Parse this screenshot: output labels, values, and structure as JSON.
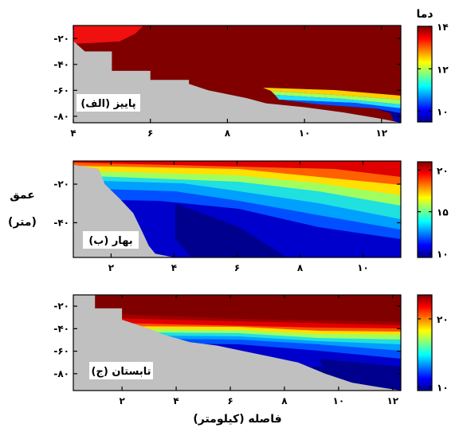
{
  "chart_data": [
    {
      "type": "heatmap",
      "panel_label": "(الف) پاییز",
      "xlim": [
        4,
        12.5
      ],
      "ylim": [
        -85,
        -10
      ],
      "xticks": [
        4,
        6,
        8,
        10,
        12
      ],
      "xtick_labels": [
        "۴",
        "۶",
        "۸",
        "۱۰",
        "۱۲"
      ],
      "yticks": [
        -20,
        -40,
        -60,
        -80
      ],
      "ytick_labels": [
        "-۲۰",
        "-۴۰",
        "-۶۰",
        "-۸۰"
      ],
      "colorbar": {
        "min": 9.5,
        "max": 14,
        "ticks": [
          10,
          12,
          14
        ],
        "tick_labels": [
          "۱۰",
          "۱۲",
          "۱۴"
        ],
        "title": "دما"
      },
      "bottom_depth": [
        [
          4.0,
          -22
        ],
        [
          4.3,
          -30
        ],
        [
          5.0,
          -30
        ],
        [
          5.0,
          -45
        ],
        [
          6.0,
          -45
        ],
        [
          6.0,
          -52
        ],
        [
          7.0,
          -52
        ],
        [
          7.0,
          -55
        ],
        [
          7.5,
          -60
        ],
        [
          8.5,
          -66
        ],
        [
          9.0,
          -70
        ],
        [
          10.0,
          -73
        ],
        [
          11.0,
          -77
        ],
        [
          12.0,
          -82
        ],
        [
          12.5,
          -85
        ]
      ],
      "temperature_field": "warm (~14) near surface throughout; cold (~10) bottom water only in the offshore deep part beyond ~10 km"
    },
    {
      "type": "heatmap",
      "panel_label": "(ب) بهار",
      "xlim": [
        0.8,
        11.2
      ],
      "ylim": [
        -58,
        -8
      ],
      "xticks": [
        2,
        4,
        6,
        8,
        10
      ],
      "xtick_labels": [
        "۲",
        "۴",
        "۶",
        "۸",
        "۱۰"
      ],
      "yticks": [
        -20,
        -40
      ],
      "ytick_labels": [
        "-۲۰",
        "-۴۰"
      ],
      "colorbar": {
        "min": 9.5,
        "max": 21,
        "ticks": [
          10,
          15,
          20
        ],
        "tick_labels": [
          "۱۰",
          "۱۵",
          "۲۰"
        ],
        "title": ""
      },
      "bottom_depth": [
        [
          0.8,
          -10
        ],
        [
          1.6,
          -12
        ],
        [
          1.8,
          -20
        ],
        [
          2.3,
          -28
        ],
        [
          2.7,
          -35
        ],
        [
          3.0,
          -45
        ],
        [
          3.2,
          -52
        ],
        [
          3.4,
          -56
        ],
        [
          4.0,
          -58
        ]
      ],
      "temperature_field": "warm (~20) thin surface layer; strong thermocline; cold (~10) water below about 40 m"
    },
    {
      "type": "heatmap",
      "panel_label": "(ج) تابستان",
      "xlim": [
        0.2,
        12.3
      ],
      "ylim": [
        -95,
        -10
      ],
      "xticks": [
        2,
        4,
        6,
        8,
        10,
        12
      ],
      "xtick_labels": [
        "۲",
        "۴",
        "۶",
        "۸",
        "۱۰",
        "۱۲"
      ],
      "yticks": [
        -20,
        -40,
        -60,
        -80
      ],
      "ytick_labels": [
        "-۲۰",
        "-۴۰",
        "-۶۰",
        "-۸۰"
      ],
      "colorbar": {
        "min": 9.5,
        "max": 23.5,
        "ticks": [
          10,
          20
        ],
        "tick_labels": [
          "۱۰",
          "۲۰"
        ],
        "title": ""
      },
      "bottom_depth": [
        [
          0.2,
          -10
        ],
        [
          1.0,
          -10
        ],
        [
          1.0,
          -22
        ],
        [
          2.0,
          -22
        ],
        [
          2.0,
          -32
        ],
        [
          3.0,
          -40
        ],
        [
          3.5,
          -45
        ],
        [
          4.5,
          -52
        ],
        [
          5.5,
          -55
        ],
        [
          6.5,
          -60
        ],
        [
          7.5,
          -65
        ],
        [
          8.5,
          -70
        ],
        [
          9.5,
          -80
        ],
        [
          10.5,
          -88
        ],
        [
          11.5,
          -92
        ],
        [
          12.3,
          -95
        ]
      ],
      "temperature_field": "warm (~23) mixed layer down to ~40 m; sharp thermocline near 45 m; cold (~10) water below"
    }
  ],
  "shared": {
    "xlabel": "فاصله (کیلومتر)",
    "ylabel_line1": "عمق",
    "ylabel_line2": "(متر)"
  }
}
